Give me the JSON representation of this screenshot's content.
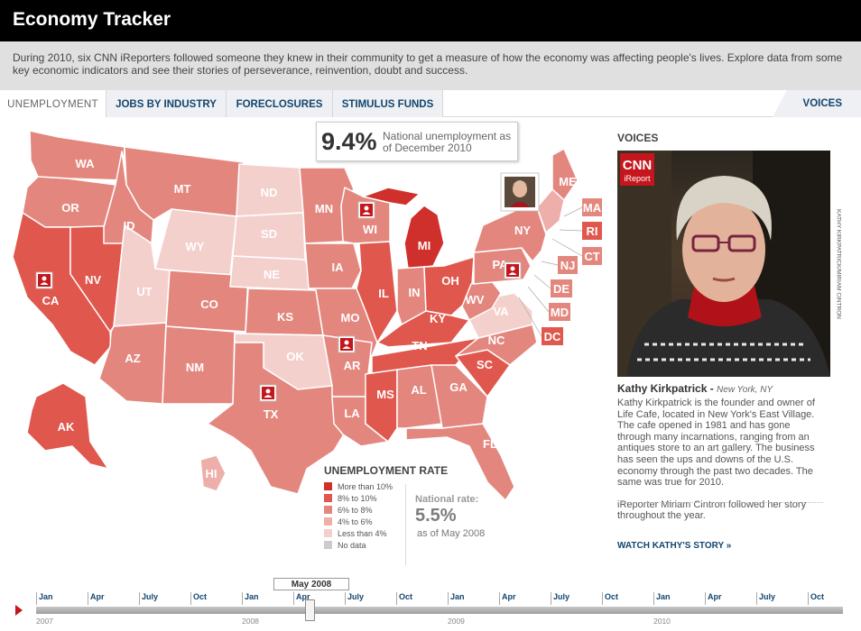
{
  "header": {
    "title": "Economy Tracker"
  },
  "intro": "During 2010, six CNN iReporters followed someone they knew in their community to get a measure of how the economy was affecting people's lives. Explore data from some key economic indicators and see their stories of perseverance, reinvention, doubt and success.",
  "tabs": [
    {
      "label": "UNEMPLOYMENT",
      "active": true
    },
    {
      "label": "JOBS BY INDUSTRY"
    },
    {
      "label": "FORECLOSURES"
    },
    {
      "label": "STIMULUS FUNDS"
    }
  ],
  "voices_tab": "VOICES",
  "callout": {
    "rate": "9.4%",
    "text": "National unemployment as of December 2010"
  },
  "colors": {
    "c1": "#d0302b",
    "c2": "#e0574e",
    "c3": "#e3877e",
    "c4": "#eeaea9",
    "c5": "#f4d0cd",
    "nodata": "#cccccc",
    "link": "#13456f",
    "timeline_marker": "#c4161c"
  },
  "map": {
    "states": [
      {
        "abbr": "WA",
        "level": "c3"
      },
      {
        "abbr": "OR",
        "level": "c3"
      },
      {
        "abbr": "CA",
        "level": "c2"
      },
      {
        "abbr": "NV",
        "level": "c2"
      },
      {
        "abbr": "ID",
        "level": "c3"
      },
      {
        "abbr": "MT",
        "level": "c3"
      },
      {
        "abbr": "WY",
        "level": "c5"
      },
      {
        "abbr": "UT",
        "level": "c5"
      },
      {
        "abbr": "CO",
        "level": "c3"
      },
      {
        "abbr": "AZ",
        "level": "c3"
      },
      {
        "abbr": "NM",
        "level": "c3"
      },
      {
        "abbr": "ND",
        "level": "c5"
      },
      {
        "abbr": "SD",
        "level": "c5"
      },
      {
        "abbr": "NE",
        "level": "c5"
      },
      {
        "abbr": "KS",
        "level": "c3"
      },
      {
        "abbr": "OK",
        "level": "c5"
      },
      {
        "abbr": "TX",
        "level": "c3"
      },
      {
        "abbr": "MN",
        "level": "c3"
      },
      {
        "abbr": "IA",
        "level": "c3"
      },
      {
        "abbr": "MO",
        "level": "c3"
      },
      {
        "abbr": "AR",
        "level": "c3"
      },
      {
        "abbr": "LA",
        "level": "c3"
      },
      {
        "abbr": "WI",
        "level": "c3"
      },
      {
        "abbr": "IL",
        "level": "c2"
      },
      {
        "abbr": "MI",
        "level": "c1"
      },
      {
        "abbr": "IN",
        "level": "c3"
      },
      {
        "abbr": "OH",
        "level": "c2"
      },
      {
        "abbr": "KY",
        "level": "c2"
      },
      {
        "abbr": "TN",
        "level": "c2"
      },
      {
        "abbr": "MS",
        "level": "c2"
      },
      {
        "abbr": "AL",
        "level": "c3"
      },
      {
        "abbr": "GA",
        "level": "c3"
      },
      {
        "abbr": "FL",
        "level": "c3"
      },
      {
        "abbr": "SC",
        "level": "c2"
      },
      {
        "abbr": "NC",
        "level": "c3"
      },
      {
        "abbr": "VA",
        "level": "c5"
      },
      {
        "abbr": "WV",
        "level": "c3"
      },
      {
        "abbr": "PA",
        "level": "c3"
      },
      {
        "abbr": "NY",
        "level": "c3"
      },
      {
        "abbr": "ME",
        "level": "c3"
      },
      {
        "abbr": "AK",
        "level": "c2"
      },
      {
        "abbr": "HI",
        "level": "c4"
      },
      {
        "abbr": "MA",
        "level": "c3"
      },
      {
        "abbr": "RI",
        "level": "c2"
      },
      {
        "abbr": "CT",
        "level": "c3"
      },
      {
        "abbr": "NJ",
        "level": "c3"
      },
      {
        "abbr": "DE",
        "level": "c3"
      },
      {
        "abbr": "MD",
        "level": "c3"
      },
      {
        "abbr": "DC",
        "level": "c2"
      }
    ],
    "ireporter_locations": [
      "CA",
      "WI",
      "AR",
      "TX",
      "NY",
      "PA"
    ]
  },
  "legend": {
    "title": "UNEMPLOYMENT RATE",
    "items": [
      {
        "label": "More than 10%",
        "color": "#d0302b"
      },
      {
        "label": "8% to 10%",
        "color": "#e0574e"
      },
      {
        "label": "6% to 8%",
        "color": "#e3877e"
      },
      {
        "label": "4% to 6%",
        "color": "#eeaea9"
      },
      {
        "label": "Less than 4%",
        "color": "#f4d0cd"
      },
      {
        "label": "No data",
        "color": "#cccccc"
      }
    ],
    "national_label": "National rate:",
    "national_value": "5.5%",
    "national_date": "as of May 2008"
  },
  "voices": {
    "heading": "VOICES",
    "logo_top": "CNN",
    "logo_bottom": "iReport",
    "photo_credit": "KATHY KIRKPATRICK/MIRIAM CINTRON",
    "name": "Kathy Kirkpatrick - ",
    "location": "New York, NY",
    "bio": "Kathy Kirkpatrick is the founder and owner of Life Cafe, located in New York's East Village. The cafe opened in 1981 and has gone through many incarnations, ranging from an antiques store to an art gallery. The business has seen the ups and downs of the U.S. economy through the past two decades. The same was true for 2010.",
    "followed_by": "iReporter Miriam Cintron followed her story throughout the year.",
    "link": "WATCH KATHY'S STORY »"
  },
  "timeline": {
    "current": "May 2008",
    "months": [
      "Jan",
      "Apr",
      "July",
      "Oct",
      "Jan",
      "Apr",
      "July",
      "Oct",
      "Jan",
      "Apr",
      "July",
      "Oct",
      "Jan",
      "Apr",
      "July",
      "Oct"
    ],
    "years": [
      "2007",
      "2008",
      "2009",
      "2010"
    ],
    "position": 0.34
  }
}
